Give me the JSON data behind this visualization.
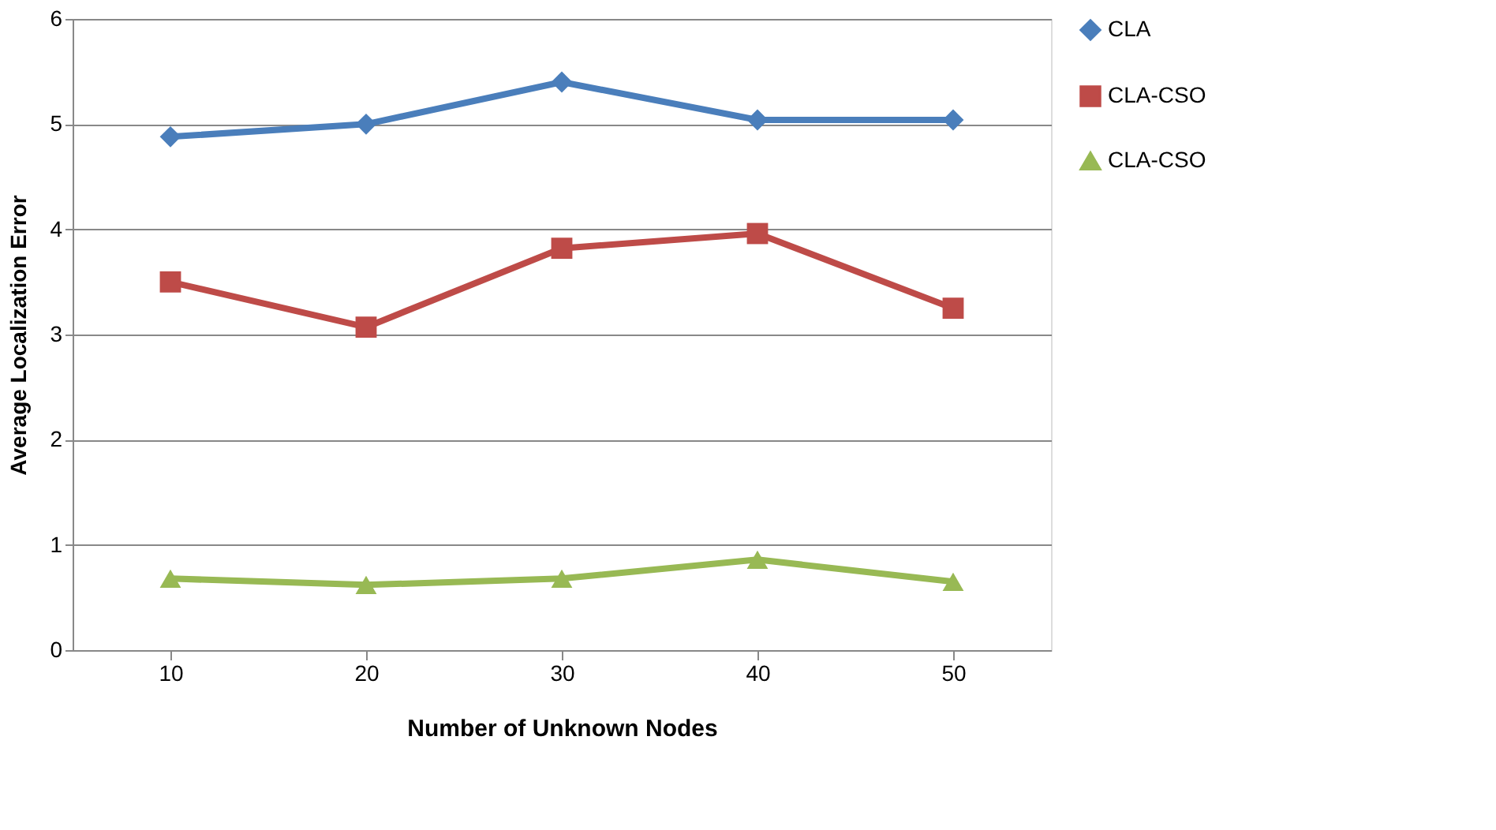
{
  "chart_data": {
    "type": "line",
    "xlabel": "Number of Unknown Nodes",
    "ylabel": "Average Localization  Error",
    "categories": [
      "10",
      "20",
      "30",
      "40",
      "50"
    ],
    "series": [
      {
        "name": "CLA",
        "color": "#4a7ebb",
        "marker": "diamond",
        "values": [
          4.88,
          5.0,
          5.4,
          5.04,
          5.04
        ]
      },
      {
        "name": "CLA-CSO",
        "color": "#be4b48",
        "marker": "square",
        "values": [
          3.5,
          3.07,
          3.82,
          3.96,
          3.25
        ]
      },
      {
        "name": "CLA-CSO",
        "color": "#98b954",
        "marker": "triangle",
        "values": [
          0.68,
          0.62,
          0.68,
          0.86,
          0.65
        ]
      }
    ],
    "ylim": [
      0,
      6
    ],
    "yticks": [
      0,
      1,
      2,
      3,
      4,
      5,
      6
    ],
    "grid": "y",
    "legend": "right",
    "line_style": "solid"
  }
}
